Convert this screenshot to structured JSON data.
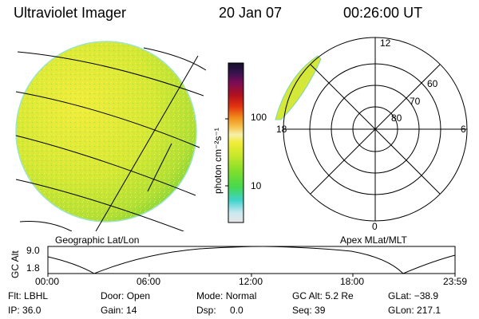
{
  "header": {
    "title": "Ultraviolet Imager",
    "date": "20 Jan 07",
    "time": "00:26:00 UT"
  },
  "left_panel": {
    "caption": "Geographic Lat/Lon"
  },
  "right_panel": {
    "caption": "Apex MLat/MLT",
    "mlt_labels": [
      "12",
      "18",
      "6",
      "0"
    ],
    "mlat_labels": [
      "60",
      "70",
      "80"
    ]
  },
  "colorbar": {
    "unit_label": "photon cm⁻²s⁻¹",
    "tick_labels": [
      "100",
      "10"
    ],
    "colors": [
      "#e6e6e6",
      "#cce8f0",
      "#3ed3cc",
      "#44d850",
      "#7fde2b",
      "#c8e82a",
      "#f2ec36",
      "#f7f0aa",
      "#f6c24c",
      "#f08a18",
      "#e23010",
      "#b01020",
      "#7a0c58",
      "#35124e",
      "#14102a"
    ]
  },
  "alt_strip": {
    "label": "GC Alt",
    "y_ticks": [
      "9.0",
      "1.8"
    ],
    "x_ticks": [
      "00:00",
      "06:00",
      "12:00",
      "18:00",
      "23:59"
    ]
  },
  "info": {
    "row1": [
      {
        "key": "Flt:",
        "val": "LBHL"
      },
      {
        "key": "Door:",
        "val": "Open"
      },
      {
        "key": "Mode:",
        "val": "Normal"
      },
      {
        "key": "GC Alt:",
        "val": "5.2 Re"
      },
      {
        "key": "GLat:",
        "val": "−38.9"
      }
    ],
    "row2": [
      {
        "key": "IP:",
        "val": "36.0"
      },
      {
        "key": "Gain:",
        "val": "14"
      },
      {
        "key": "Dsp:",
        "val": "0.0"
      },
      {
        "key": "Seq:",
        "val": "39"
      },
      {
        "key": "GLon:",
        "val": "217.1"
      }
    ]
  }
}
